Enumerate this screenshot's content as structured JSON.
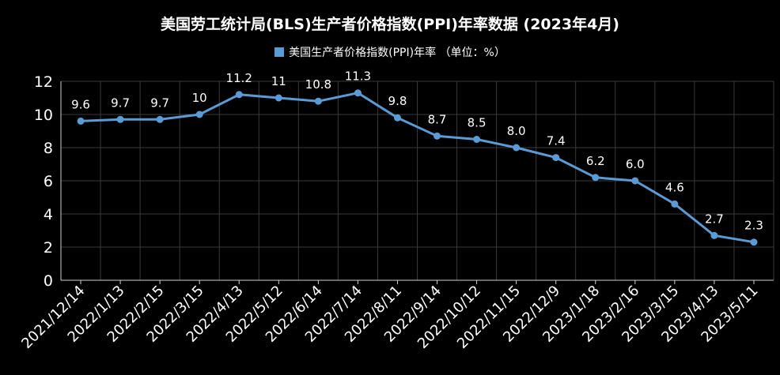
{
  "chart_data": {
    "type": "line",
    "title": "美国劳工统计局(BLS)生产者价格指数(PPI)年率数据 (2023年4月)",
    "categories": [
      "2021/12/14",
      "2022/1/13",
      "2022/2/15",
      "2022/3/15",
      "2022/4/13",
      "2022/5/12",
      "2022/6/14",
      "2022/7/14",
      "2022/8/11",
      "2022/9/14",
      "2022/10/12",
      "2022/11/15",
      "2022/12/9",
      "2023/1/18",
      "2023/2/16",
      "2023/3/15",
      "2023/4/13",
      "2023/5/11"
    ],
    "series": [
      {
        "name": "美国生产者价格指数(PPI)年率 （单位：%）",
        "values": [
          9.6,
          9.7,
          9.7,
          10,
          11.2,
          11,
          10.8,
          11.3,
          9.8,
          8.7,
          8.5,
          8.0,
          7.4,
          6.2,
          6.0,
          4.6,
          2.7,
          2.3
        ],
        "labels": [
          "9.6",
          "9.7",
          "9.7",
          "10",
          "11.2",
          "11",
          "10.8",
          "11.3",
          "9.8",
          "8.7",
          "8.5",
          "8.0",
          "7.4",
          "6.2",
          "6.0",
          "4.6",
          "2.7",
          "2.3"
        ],
        "color": "#5b9bd5"
      }
    ],
    "ylim": [
      0,
      12
    ],
    "yticks": [
      "0",
      "2",
      "4",
      "6",
      "8",
      "10",
      "12"
    ],
    "grid": true,
    "legend_position": "top-center",
    "background": "#000000"
  }
}
